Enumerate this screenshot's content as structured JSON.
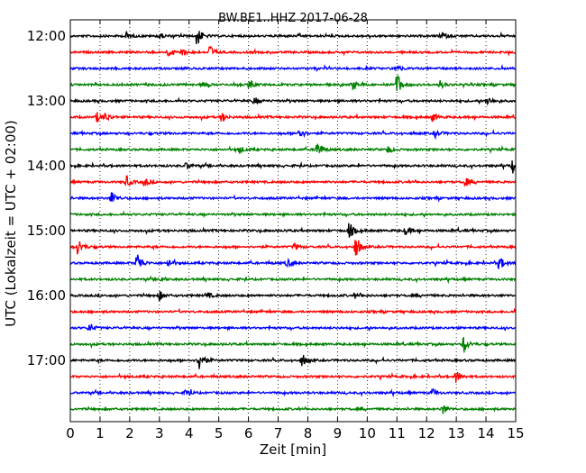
{
  "chart_data": {
    "type": "line",
    "title": "BW.BE1..HHZ 2017-06-28",
    "xlabel": "Zeit  [min]",
    "ylabel": "UTC (Lokalzeit = UTC + 02:00)",
    "xlim": [
      0,
      15
    ],
    "x_ticks": [
      "0",
      "1",
      "2",
      "3",
      "4",
      "5",
      "6",
      "7",
      "8",
      "9",
      "10",
      "11",
      "12",
      "13",
      "14",
      "15"
    ],
    "y_ticks": [
      "12:00",
      "13:00",
      "14:00",
      "15:00",
      "16:00",
      "17:00"
    ],
    "grid": "vertical dotted at each minute",
    "line_colors": [
      "#000000",
      "#ff0000",
      "#0000ff",
      "#008000"
    ],
    "traces": [
      {
        "start": "12:00",
        "events": [
          {
            "x": 1.9,
            "amp": 0.35
          },
          {
            "x": 3.0,
            "amp": 0.25
          },
          {
            "x": 4.25,
            "amp": 1.0
          },
          {
            "x": 12.5,
            "amp": 0.35
          }
        ]
      },
      {
        "start": "12:15",
        "events": [
          {
            "x": 3.3,
            "amp": 0.3
          },
          {
            "x": 3.75,
            "amp": 0.35
          },
          {
            "x": 4.7,
            "amp": 0.6
          }
        ]
      },
      {
        "start": "12:30",
        "events": [
          {
            "x": 11.0,
            "amp": 0.3
          }
        ]
      },
      {
        "start": "12:45",
        "events": [
          {
            "x": 4.4,
            "amp": 0.25
          },
          {
            "x": 6.05,
            "amp": 0.35
          },
          {
            "x": 9.5,
            "amp": 0.35
          },
          {
            "x": 11.0,
            "amp": 1.0
          },
          {
            "x": 12.45,
            "amp": 0.3
          }
        ]
      },
      {
        "start": "13:00",
        "events": [
          {
            "x": 6.2,
            "amp": 0.3
          },
          {
            "x": 14.05,
            "amp": 0.35
          }
        ]
      },
      {
        "start": "13:15",
        "events": [
          {
            "x": 0.9,
            "amp": 0.4
          },
          {
            "x": 1.2,
            "amp": 0.35
          },
          {
            "x": 5.1,
            "amp": 0.4
          },
          {
            "x": 12.2,
            "amp": 0.35
          }
        ]
      },
      {
        "start": "13:30",
        "events": [
          {
            "x": 7.7,
            "amp": 0.55
          },
          {
            "x": 12.3,
            "amp": 0.3
          }
        ]
      },
      {
        "start": "13:45",
        "events": [
          {
            "x": 5.7,
            "amp": 0.3
          },
          {
            "x": 8.3,
            "amp": 0.8
          },
          {
            "x": 10.7,
            "amp": 0.3
          }
        ]
      },
      {
        "start": "14:00",
        "events": [
          {
            "x": 3.9,
            "amp": 0.25
          },
          {
            "x": 14.9,
            "amp": 0.55
          }
        ]
      },
      {
        "start": "14:15",
        "events": [
          {
            "x": 1.9,
            "amp": 0.45
          },
          {
            "x": 2.5,
            "amp": 0.35
          },
          {
            "x": 13.3,
            "amp": 0.4
          }
        ]
      },
      {
        "start": "14:30",
        "events": [
          {
            "x": 1.4,
            "amp": 0.6
          }
        ]
      },
      {
        "start": "14:45",
        "events": []
      },
      {
        "start": "15:00",
        "events": [
          {
            "x": 9.4,
            "amp": 0.7
          },
          {
            "x": 11.3,
            "amp": 0.4
          }
        ]
      },
      {
        "start": "15:15",
        "events": [
          {
            "x": 0.25,
            "amp": 0.75
          },
          {
            "x": 7.55,
            "amp": 0.3
          },
          {
            "x": 9.6,
            "amp": 1.0
          }
        ]
      },
      {
        "start": "15:30",
        "events": [
          {
            "x": 2.25,
            "amp": 1.0
          },
          {
            "x": 3.3,
            "amp": 0.35
          },
          {
            "x": 7.3,
            "amp": 0.35
          },
          {
            "x": 14.45,
            "amp": 0.6
          }
        ]
      },
      {
        "start": "15:45",
        "events": [
          {
            "x": 3.0,
            "amp": 0.2
          }
        ]
      },
      {
        "start": "16:00",
        "events": [
          {
            "x": 3.0,
            "amp": 0.4
          },
          {
            "x": 4.6,
            "amp": 0.3
          },
          {
            "x": 9.6,
            "amp": 0.2
          }
        ]
      },
      {
        "start": "16:15",
        "events": []
      },
      {
        "start": "16:30",
        "events": [
          {
            "x": 0.65,
            "amp": 0.4
          }
        ]
      },
      {
        "start": "16:45",
        "events": [
          {
            "x": 13.25,
            "amp": 0.7
          }
        ]
      },
      {
        "start": "17:00",
        "events": [
          {
            "x": 4.35,
            "amp": 1.0
          },
          {
            "x": 7.8,
            "amp": 0.45
          }
        ]
      },
      {
        "start": "17:15",
        "events": [
          {
            "x": 13.0,
            "amp": 0.55
          }
        ]
      },
      {
        "start": "17:30",
        "events": [
          {
            "x": 3.9,
            "amp": 0.35
          },
          {
            "x": 12.2,
            "amp": 0.3
          }
        ]
      },
      {
        "start": "17:45",
        "events": [
          {
            "x": 12.55,
            "amp": 0.4
          }
        ]
      }
    ]
  }
}
